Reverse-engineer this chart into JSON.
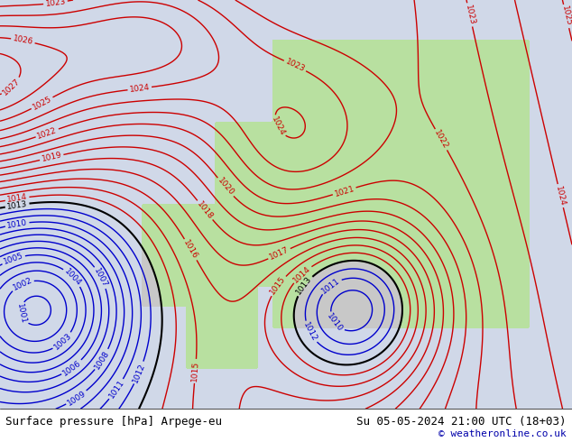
{
  "title_left": "Surface pressure [hPa] Arpege-eu",
  "title_right": "Su 05-05-2024 21:00 UTC (18+03)",
  "copyright": "© weatheronline.co.uk",
  "bg_ocean_color": "#d0d8e8",
  "bg_land_color": "#c8c8c8",
  "bg_green_color": "#b8e0a0",
  "contour_blue_color": "#0000cc",
  "contour_red_color": "#cc0000",
  "contour_black_color": "#000000",
  "footer_bg": "#ffffff",
  "footer_text_color": "#000000",
  "copyright_color": "#0000aa",
  "figsize": [
    6.34,
    4.9
  ],
  "dpi": 100
}
